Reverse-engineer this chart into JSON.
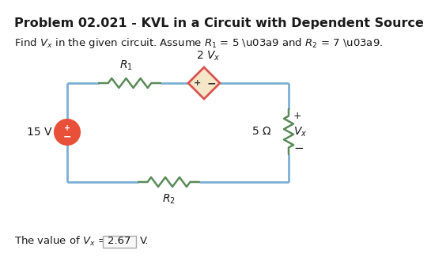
{
  "title": "Problem 02.021 - KVL in a Circuit with Dependent Source",
  "subtitle_parts": [
    "Find ",
    "V",
    "x",
    " in the given circuit. Assume ",
    "R",
    "1",
    " = 5 Ω and ",
    "R",
    "2",
    " = 7 Ω."
  ],
  "answer_value": "2.67",
  "background_color": "#ffffff",
  "wire_color": "#7bafd4",
  "resistor_color": "#5a8a5a",
  "source_circle_fill": "#e8503a",
  "dep_source_fill": "#f5e6c8",
  "dep_source_edge": "#d9534f",
  "wire_lw": 2.0,
  "res_lw": 1.8,
  "title_fontsize": 11.5,
  "body_fontsize": 9.5,
  "label_fontsize": 10
}
